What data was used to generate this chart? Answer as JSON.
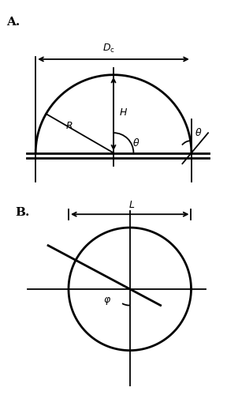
{
  "fig_width": 2.88,
  "fig_height": 5.0,
  "dpi": 100,
  "bg_color": "#ffffff",
  "line_color": "#000000",
  "lw_thin": 1.3,
  "lw_thick": 2.0,
  "panel_A_label": "A.",
  "panel_B_label": "B.",
  "label_Dc": "$D_{\\mathrm{c}}$",
  "label_H": "$H$",
  "label_R": "$R$",
  "label_theta1": "$\\theta$",
  "label_theta2": "$\\theta$",
  "label_L": "$L$",
  "label_phi": "$\\varphi$",
  "fontsize_label": 9,
  "fontsize_panel": 11
}
